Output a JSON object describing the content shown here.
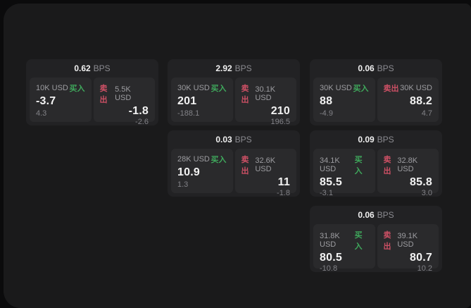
{
  "labels": {
    "bps": "BPS",
    "buy": "买入",
    "sell": "卖出"
  },
  "colors": {
    "panel_bg": "#1a1a1b",
    "card_bg": "#222224",
    "cell_bg": "#2a2a2c",
    "buy_green": "#3fa95c",
    "sell_red": "#cd5065",
    "primary_text": "#f2f2f2",
    "muted_text": "#9d9da1"
  },
  "cards": [
    {
      "bps": "0.62",
      "buy": {
        "amount": "10K USD",
        "value": "-3.7",
        "change": "4.3"
      },
      "sell": {
        "amount": "5.5K USD",
        "value": "-1.8",
        "change": "-2.6"
      }
    },
    {
      "bps": "2.92",
      "buy": {
        "amount": "30K USD",
        "value": "201",
        "change": "-188.1"
      },
      "sell": {
        "amount": "30.1K USD",
        "value": "210",
        "change": "196.5"
      }
    },
    {
      "bps": "0.06",
      "buy": {
        "amount": "30K USD",
        "value": "88",
        "change": "-4.9"
      },
      "sell": {
        "amount": "30K USD",
        "value": "88.2",
        "change": "4.7"
      }
    },
    {
      "bps": "0.03",
      "buy": {
        "amount": "28K USD",
        "value": "10.9",
        "change": "1.3"
      },
      "sell": {
        "amount": "32.6K USD",
        "value": "11",
        "change": "-1.8"
      }
    },
    {
      "bps": "0.09",
      "buy": {
        "amount": "34.1K USD",
        "value": "85.5",
        "change": "-3.1"
      },
      "sell": {
        "amount": "32.8K USD",
        "value": "85.8",
        "change": "3.0"
      }
    },
    {
      "bps": "0.06",
      "buy": {
        "amount": "31.8K USD",
        "value": "80.5",
        "change": "-10.8"
      },
      "sell": {
        "amount": "39.1K USD",
        "value": "80.7",
        "change": "10.2"
      }
    }
  ]
}
